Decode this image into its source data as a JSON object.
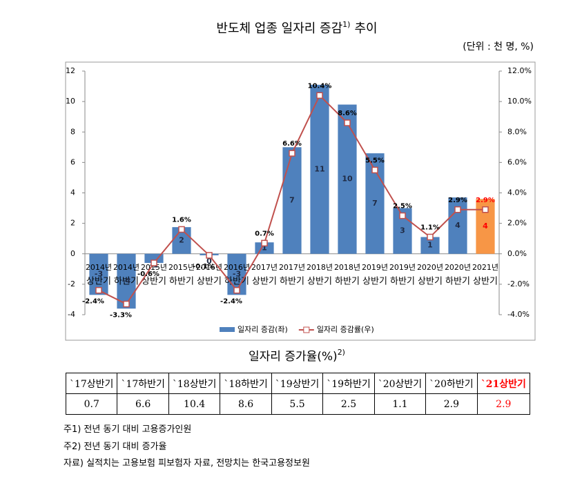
{
  "chart_data": {
    "type": "bar-line",
    "title": "반도체 업종 일자리 증감",
    "title_sup": "1)",
    "title_tail": "추이",
    "unit": "(단위 : 천 명, %)",
    "categories": [
      [
        "2014년",
        "상반기"
      ],
      [
        "2014년",
        "하반기"
      ],
      [
        "2015년",
        "상반기"
      ],
      [
        "2015년",
        "하반기"
      ],
      [
        "2016년",
        "상반기"
      ],
      [
        "2016년",
        "하반기"
      ],
      [
        "2017년",
        "상반기"
      ],
      [
        "2017년",
        "하반기"
      ],
      [
        "2018년",
        "상반기"
      ],
      [
        "2018년",
        "하반기"
      ],
      [
        "2019년",
        "상반기"
      ],
      [
        "2019년",
        "하반기"
      ],
      [
        "2020년",
        "상반기"
      ],
      [
        "2020년",
        "하반기"
      ],
      [
        "2021년",
        "상반기"
      ]
    ],
    "series": [
      {
        "name": "일자리 증감(좌)",
        "type": "bar",
        "color": "#4f81bd",
        "colors": [
          "#4f81bd",
          "#4f81bd",
          "#4f81bd",
          "#4f81bd",
          "#4f81bd",
          "#4f81bd",
          "#4f81bd",
          "#4f81bd",
          "#4f81bd",
          "#4f81bd",
          "#4f81bd",
          "#4f81bd",
          "#4f81bd",
          "#4f81bd",
          "#f79646"
        ],
        "values": [
          -2.7,
          -3.6,
          -0.6,
          1.75,
          -0.1,
          -2.7,
          0.75,
          7.0,
          11.1,
          9.8,
          6.6,
          3.0,
          1.1,
          3.7,
          3.6
        ],
        "value_labels": [
          "-3",
          "-4",
          "-1",
          "2",
          "0",
          "-3",
          "1",
          "7",
          "11",
          "10",
          "7",
          "3",
          "1",
          "4",
          "4"
        ],
        "value_label_colors": [
          "#1f2a44",
          "#1f2a44",
          "#1f2a44",
          "#1f2a44",
          "#1f2a44",
          "#1f2a44",
          "#1f2a44",
          "#1f2a44",
          "#1f2a44",
          "#1f2a44",
          "#1f2a44",
          "#1f2a44",
          "#1f2a44",
          "#1f2a44",
          "#ff0000"
        ]
      },
      {
        "name": "일자리 증감률(우)",
        "type": "line",
        "axis": "y2",
        "color": "#c0504d",
        "values": [
          -2.4,
          -3.3,
          -0.6,
          1.6,
          -0.1,
          -2.4,
          0.7,
          6.6,
          10.4,
          8.6,
          5.5,
          2.5,
          1.1,
          2.9,
          2.9
        ],
        "value_labels": [
          "-2.4%",
          "-3.3%",
          "-0.6%",
          "1.6%",
          "-0.1%",
          "-2.4%",
          "0.7%",
          "6.6%",
          "10.4%",
          "8.6%",
          "5.5%",
          "2.5%",
          "1.1%",
          "2.9%",
          "2.9%"
        ],
        "value_label_colors": [
          "#000000",
          "#000000",
          "#000000",
          "#000000",
          "#000000",
          "#000000",
          "#000000",
          "#000000",
          "#000000",
          "#000000",
          "#000000",
          "#000000",
          "#000000",
          "#000000",
          "#ff0000"
        ]
      }
    ],
    "ylim": [
      -4,
      12
    ],
    "yticks": [
      -4,
      -2,
      0,
      2,
      4,
      6,
      8,
      10,
      12
    ],
    "y2lim": [
      -4,
      12
    ],
    "y2ticks": [
      {
        "value": -4,
        "label": "-4.0%"
      },
      {
        "value": -2,
        "label": "-2.0%"
      },
      {
        "value": 0,
        "label": "0.0%"
      },
      {
        "value": 2,
        "label": "2.0%"
      },
      {
        "value": 4,
        "label": "4.0%"
      },
      {
        "value": 6,
        "label": "6.0%"
      },
      {
        "value": 8,
        "label": "8.0%"
      },
      {
        "value": 10,
        "label": "10.0%"
      },
      {
        "value": 12,
        "label": "12.0%"
      }
    ],
    "grid": false,
    "legend": "bottom"
  },
  "table": {
    "title": "일자리 증가율(%)",
    "title_sup": "2)",
    "header": [
      "`17상반기",
      "`17하반기",
      "`18상반기",
      "`18하반기",
      "`19상반기",
      "`19하반기",
      "`20상반기",
      "`20하반기",
      "`21상반기"
    ],
    "rows": [
      [
        "0.7",
        "6.6",
        "10.4",
        "8.6",
        "5.5",
        "2.5",
        "1.1",
        "2.9",
        "2.9"
      ]
    ],
    "highlight_color": "#ff0000"
  },
  "notes": [
    "주1) 전년 동기 대비 고용증가인원",
    "주2) 전년 동기 대비 증가율",
    "자료) 실적치는 고용보험 피보험자 자료, 전망치는 한국고용정보원"
  ]
}
